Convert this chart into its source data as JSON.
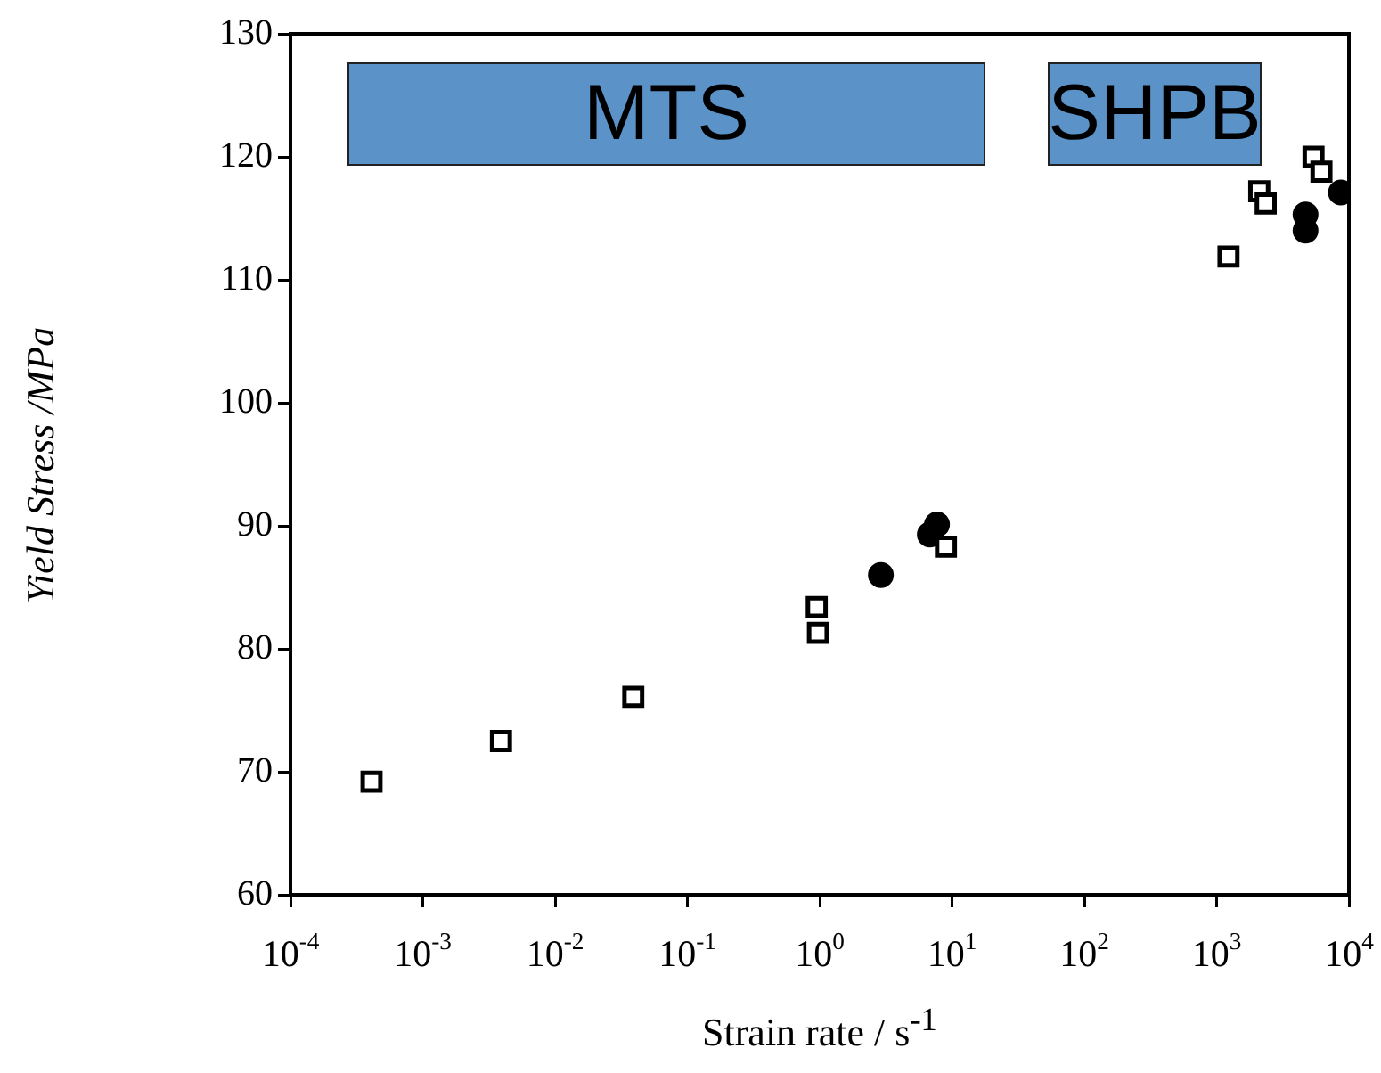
{
  "chart_data": {
    "type": "scatter",
    "xlabel": "Strain rate / s$^{-1}$",
    "ylabel": "Yield Stress /MPa",
    "log": "x",
    "grid": false,
    "legend": false,
    "xlim": [
      0.0001,
      10000
    ],
    "xticks": [
      {
        "value": 0.0001,
        "label": "10$^{-4}$"
      },
      {
        "value": 0.001,
        "label": "10$^{-3}$"
      },
      {
        "value": 0.01,
        "label": "10$^{-2}$"
      },
      {
        "value": 0.1,
        "label": "10$^{-1}$"
      },
      {
        "value": 1,
        "label": "10$^{0}$"
      },
      {
        "value": 10,
        "label": "10$^{1}$"
      },
      {
        "value": 100,
        "label": "10$^{2}$"
      },
      {
        "value": 1000,
        "label": "10$^{3}$"
      },
      {
        "value": 10000,
        "label": "10$^{4}$"
      }
    ],
    "ylim": [
      60,
      130
    ],
    "yticks": [
      60,
      70,
      80,
      90,
      100,
      110,
      120,
      130
    ],
    "annotations": [
      "MTS",
      "SHPB"
    ],
    "series": [
      {
        "color": "#000000",
        "marker": "square",
        "x": [
          0.00041,
          0.0039,
          0.039,
          0.97,
          0.95,
          9.0,
          1230,
          2100,
          2350,
          5400,
          6200
        ],
        "values": [
          69.2,
          72.5,
          76.1,
          81.3,
          83.4,
          88.3,
          111.9,
          117.2,
          116.2,
          120.0,
          118.8
        ]
      },
      {
        "color": "#000000",
        "marker": "circle",
        "x": [
          2.9,
          7.7,
          6.8,
          4700,
          4700,
          8700
        ],
        "values": [
          86.0,
          90.1,
          89.3,
          115.3,
          114.0,
          117.1
        ]
      }
    ]
  }
}
